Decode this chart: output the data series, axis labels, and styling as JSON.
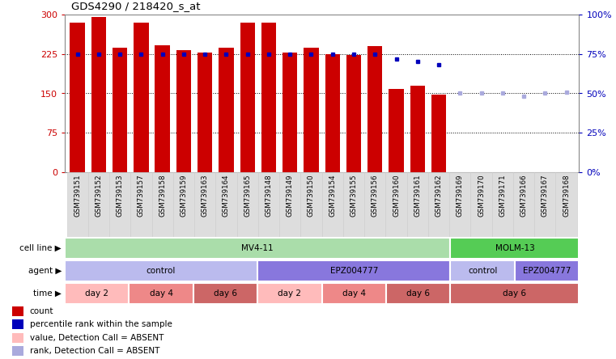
{
  "title": "GDS4290 / 218420_s_at",
  "samples": [
    "GSM739151",
    "GSM739152",
    "GSM739153",
    "GSM739157",
    "GSM739158",
    "GSM739159",
    "GSM739163",
    "GSM739164",
    "GSM739165",
    "GSM739148",
    "GSM739149",
    "GSM739150",
    "GSM739154",
    "GSM739155",
    "GSM739156",
    "GSM739160",
    "GSM739161",
    "GSM739162",
    "GSM739169",
    "GSM739170",
    "GSM739171",
    "GSM739166",
    "GSM739167",
    "GSM739168"
  ],
  "counts": [
    285,
    296,
    237,
    284,
    241,
    232,
    227,
    237,
    284,
    284,
    228,
    237,
    225,
    223,
    240,
    158,
    164,
    148,
    0,
    0,
    0,
    0,
    0,
    0
  ],
  "counts_absent": [
    false,
    false,
    false,
    false,
    false,
    false,
    false,
    false,
    false,
    false,
    false,
    false,
    false,
    false,
    false,
    false,
    false,
    false,
    true,
    true,
    true,
    true,
    true,
    true
  ],
  "percentile_ranks": [
    75,
    75,
    75,
    75,
    75,
    75,
    75,
    75,
    75,
    75,
    75,
    75,
    75,
    75,
    75,
    72,
    70,
    68,
    50,
    50,
    50,
    48,
    50,
    51
  ],
  "rank_absent": [
    false,
    false,
    false,
    false,
    false,
    false,
    false,
    false,
    false,
    false,
    false,
    false,
    false,
    false,
    false,
    false,
    false,
    false,
    true,
    true,
    true,
    true,
    true,
    true
  ],
  "bar_color": "#cc0000",
  "bar_absent_color": "#ffbbbb",
  "rank_color": "#0000bb",
  "rank_absent_color": "#aaaadd",
  "plot_bg_color": "#ffffff",
  "cell_line_mv411_color": "#aaddaa",
  "cell_line_molm13_color": "#55cc55",
  "agent_control_color": "#bbbbee",
  "agent_epz_color": "#8877dd",
  "time_day2_color": "#ffbbbb",
  "time_day4_color": "#ee8888",
  "time_day6_color": "#cc6666",
  "yticks_left": [
    0,
    75,
    150,
    225,
    300
  ],
  "yticks_right": [
    0,
    25,
    50,
    75,
    100
  ],
  "cell_lines": [
    {
      "label": "MV4-11",
      "start": 0,
      "end": 18
    },
    {
      "label": "MOLM-13",
      "start": 18,
      "end": 24
    }
  ],
  "agents": [
    {
      "label": "control",
      "start": 0,
      "end": 9
    },
    {
      "label": "EPZ004777",
      "start": 9,
      "end": 18
    },
    {
      "label": "control",
      "start": 18,
      "end": 21
    },
    {
      "label": "EPZ004777",
      "start": 21,
      "end": 24
    }
  ],
  "times": [
    {
      "label": "day 2",
      "start": 0,
      "end": 3
    },
    {
      "label": "day 4",
      "start": 3,
      "end": 6
    },
    {
      "label": "day 6",
      "start": 6,
      "end": 9
    },
    {
      "label": "day 2",
      "start": 9,
      "end": 12
    },
    {
      "label": "day 4",
      "start": 12,
      "end": 15
    },
    {
      "label": "day 6",
      "start": 15,
      "end": 18
    },
    {
      "label": "day 6",
      "start": 18,
      "end": 24
    }
  ],
  "legend_items": [
    {
      "label": "count",
      "color": "#cc0000"
    },
    {
      "label": "percentile rank within the sample",
      "color": "#0000bb"
    },
    {
      "label": "value, Detection Call = ABSENT",
      "color": "#ffbbbb"
    },
    {
      "label": "rank, Detection Call = ABSENT",
      "color": "#aaaadd"
    }
  ]
}
